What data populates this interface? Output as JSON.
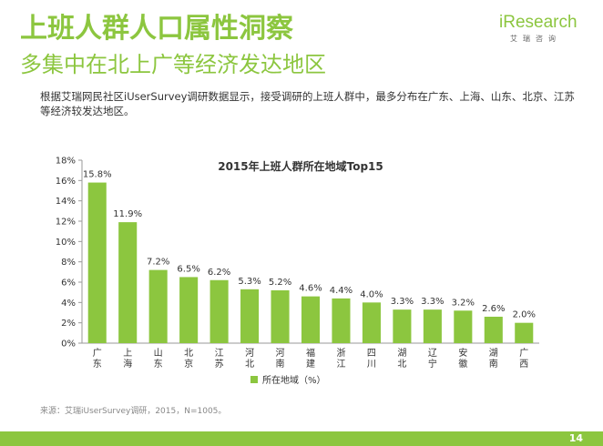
{
  "header": {
    "title": "上班人群人口属性洞察",
    "subtitle": "多集中在北上广等经济发达地区"
  },
  "logo": {
    "brand": "iResearch",
    "sub": "艾瑞咨询"
  },
  "description": "根据艾瑞网民社区iUserSurvey调研数据显示，接受调研的上班人群中，最多分布在广东、上海、山东、北京、江苏等经济较发达地区。",
  "source": "来源：艾瑞iUserSurvey调研，2015，N=1005。",
  "page_number": "14",
  "colors": {
    "accent": "#8cc63f",
    "bar": "#8cc63f"
  },
  "chart_data": {
    "type": "bar",
    "title": "2015年上班人群所在地域Top15",
    "categories": [
      "广东",
      "上海",
      "山东",
      "北京",
      "江苏",
      "河北",
      "河南",
      "福建",
      "浙江",
      "四川",
      "湖北",
      "辽宁",
      "安徽",
      "湖南",
      "广西"
    ],
    "series": [
      {
        "name": "所在地域（%）",
        "values": [
          15.8,
          11.9,
          7.2,
          6.5,
          6.2,
          5.3,
          5.2,
          4.6,
          4.4,
          4.0,
          3.3,
          3.3,
          3.2,
          2.6,
          2.0
        ]
      }
    ],
    "data_labels": [
      "15.8%",
      "11.9%",
      "7.2%",
      "6.5%",
      "6.2%",
      "5.3%",
      "5.2%",
      "4.6%",
      "4.4%",
      "4.0%",
      "3.3%",
      "3.3%",
      "3.2%",
      "2.6%",
      "2.0%"
    ],
    "yticks": [
      "0%",
      "2%",
      "4%",
      "6%",
      "8%",
      "10%",
      "12%",
      "14%",
      "16%",
      "18%"
    ],
    "ylim": [
      0,
      18
    ],
    "grid": false,
    "legend": "bottom"
  }
}
